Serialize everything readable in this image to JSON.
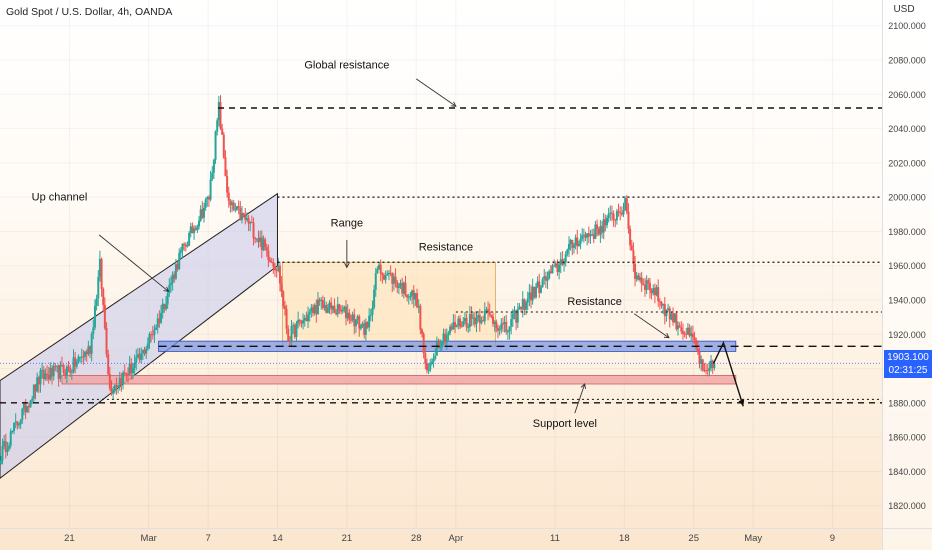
{
  "header": {
    "symbol": "Gold Spot / U.S. Dollar, 4h, OANDA",
    "currency": "USD"
  },
  "colors": {
    "up": "#26a69a",
    "down": "#ef5350",
    "channel_fill": "#c9cbec",
    "range_fill": "#fde3b6",
    "blue_zone": "#7e98e6",
    "red_zone": "#f0a3a3",
    "badge": "#2962ff"
  },
  "price_badge": {
    "price": "1903.100",
    "countdown": "02:31:25"
  },
  "chart_data": {
    "type": "line",
    "y_axis": {
      "ticks": [
        1820,
        1840,
        1860,
        1880,
        1900,
        1920,
        1940,
        1960,
        1980,
        2000,
        2020,
        2040,
        2060,
        2080,
        2100
      ],
      "tick_labels": [
        "1820.000",
        "1840.000",
        "1860.000",
        "1880.000",
        "1900.000",
        "1920.000",
        "1940.000",
        "1960.000",
        "1980.000",
        "2000.000",
        "2020.000",
        "2040.000",
        "2060.000",
        "2080.000",
        "2100.000"
      ],
      "ylim": [
        1807,
        2115
      ]
    },
    "x_axis": {
      "labels": [
        {
          "label": "21",
          "date": "2022-02-21"
        },
        {
          "label": "Mar",
          "date": "2022-03-01"
        },
        {
          "label": "7",
          "date": "2022-03-07"
        },
        {
          "label": "14",
          "date": "2022-03-14"
        },
        {
          "label": "21",
          "date": "2022-03-21"
        },
        {
          "label": "28",
          "date": "2022-03-28"
        },
        {
          "label": "Apr",
          "date": "2022-04-01"
        },
        {
          "label": "11",
          "date": "2022-04-11"
        },
        {
          "label": "18",
          "date": "2022-04-18"
        },
        {
          "label": "25",
          "date": "2022-04-25"
        },
        {
          "label": "May",
          "date": "2022-05-01"
        },
        {
          "label": "9",
          "date": "2022-05-09"
        }
      ],
      "xlim": [
        "2022-02-14T00:00",
        "2022-05-14T00:00"
      ]
    },
    "series": [
      {
        "x": [
          "2022-02-14",
          "2022-02-16",
          "2022-02-18",
          "2022-02-21",
          "2022-02-23",
          "2022-02-24",
          "2022-02-25",
          "2022-02-28",
          "2022-03-02",
          "2022-03-04",
          "2022-03-07",
          "2022-03-08",
          "2022-03-09",
          "2022-03-10",
          "2022-03-11",
          "2022-03-14",
          "2022-03-15",
          "2022-03-16",
          "2022-03-18",
          "2022-03-21",
          "2022-03-23",
          "2022-03-24",
          "2022-03-25",
          "2022-03-28",
          "2022-03-29",
          "2022-03-30",
          "2022-04-01",
          "2022-04-04",
          "2022-04-06",
          "2022-04-08",
          "2022-04-11",
          "2022-04-13",
          "2022-04-15",
          "2022-04-18",
          "2022-04-19",
          "2022-04-20",
          "2022-04-21",
          "2022-04-22",
          "2022-04-25",
          "2022-04-26",
          "2022-04-27"
        ],
        "y": [
          1850,
          1872,
          1895,
          1900,
          1912,
          1960,
          1888,
          1905,
          1930,
          1965,
          2000,
          2052,
          1995,
          1990,
          1985,
          1958,
          1918,
          1925,
          1937,
          1932,
          1922,
          1958,
          1955,
          1940,
          1895,
          1915,
          1926,
          1932,
          1922,
          1940,
          1958,
          1975,
          1980,
          1995,
          1955,
          1950,
          1945,
          1935,
          1915,
          1895,
          1903
        ]
      }
    ],
    "annotations": [
      "Global resistance",
      "Up channel",
      "Range",
      "Resistance",
      "Resistance",
      "Support level"
    ],
    "levels": [
      2052,
      2000,
      1962,
      1933,
      1913,
      1882,
      1880
    ],
    "projection": [
      {
        "date": "2022-04-27",
        "price": 1903
      },
      {
        "date": "2022-04-28",
        "price": 1915
      },
      {
        "date": "2022-04-30",
        "price": 1878
      }
    ]
  }
}
